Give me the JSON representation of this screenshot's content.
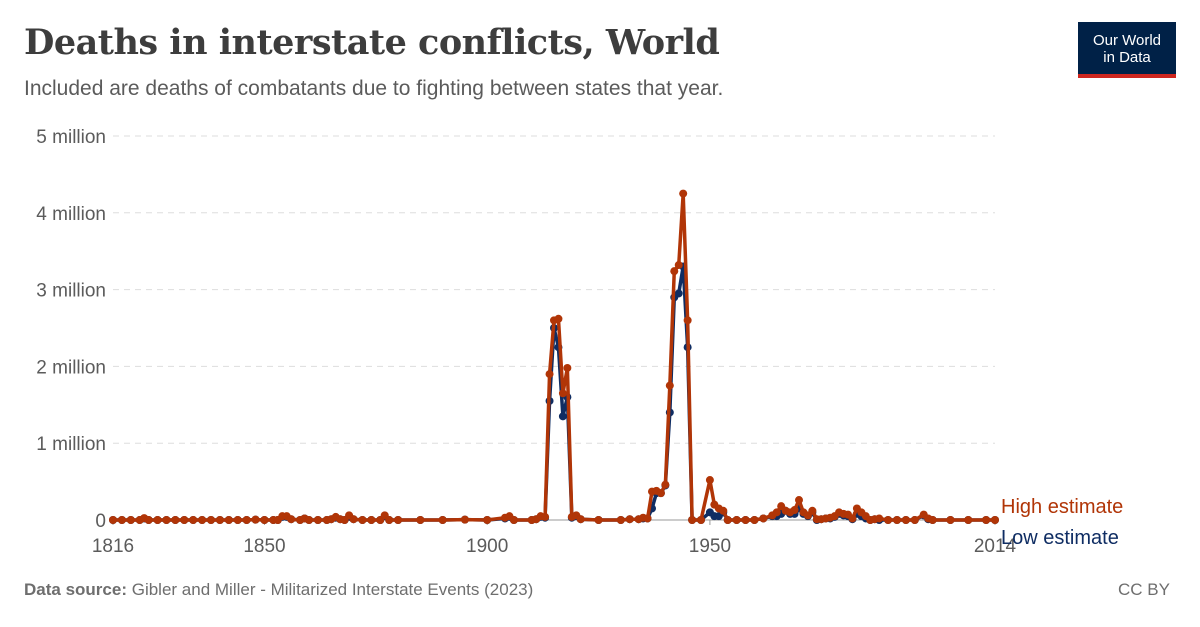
{
  "header": {
    "title": "Deaths in interstate conflicts, World",
    "subtitle": "Included are deaths of combatants due to fighting between states that year."
  },
  "logo": {
    "line1": "Our World",
    "line2": "in Data"
  },
  "footer": {
    "source_label": "Data source:",
    "source_text": "Gibler and Miller - Militarized Interstate Events (2023)",
    "license": "CC BY"
  },
  "chart_data": {
    "type": "line",
    "title": "Deaths in interstate conflicts, World",
    "xlabel": "",
    "ylabel": "",
    "xlim": [
      1816,
      2014
    ],
    "ylim": [
      0,
      5000000
    ],
    "grid": "horizontal dashed",
    "x_ticks": [
      1816,
      1850,
      1900,
      1950,
      2014
    ],
    "x_tick_labels": [
      "1816",
      "1850",
      "1900",
      "1950",
      "2014"
    ],
    "y_ticks": [
      0,
      1000000,
      2000000,
      3000000,
      4000000,
      5000000
    ],
    "y_tick_labels": [
      "0",
      "1 million",
      "2 million",
      "3 million",
      "4 million",
      "5 million"
    ],
    "legend_placement": "right, at line end",
    "series": [
      {
        "name": "Low estimate",
        "color": "#0f2d63",
        "points": [
          [
            1816,
            0
          ],
          [
            1818,
            0
          ],
          [
            1820,
            0
          ],
          [
            1822,
            0
          ],
          [
            1823,
            20000
          ],
          [
            1824,
            0
          ],
          [
            1826,
            0
          ],
          [
            1828,
            0
          ],
          [
            1830,
            0
          ],
          [
            1832,
            0
          ],
          [
            1834,
            0
          ],
          [
            1836,
            0
          ],
          [
            1838,
            0
          ],
          [
            1840,
            0
          ],
          [
            1842,
            0
          ],
          [
            1844,
            0
          ],
          [
            1846,
            0
          ],
          [
            1848,
            5000
          ],
          [
            1850,
            0
          ],
          [
            1852,
            0
          ],
          [
            1853,
            0
          ],
          [
            1854,
            40000
          ],
          [
            1855,
            40000
          ],
          [
            1856,
            10000
          ],
          [
            1858,
            0
          ],
          [
            1859,
            20000
          ],
          [
            1860,
            0
          ],
          [
            1862,
            0
          ],
          [
            1864,
            0
          ],
          [
            1865,
            10000
          ],
          [
            1866,
            30000
          ],
          [
            1867,
            10000
          ],
          [
            1868,
            0
          ],
          [
            1869,
            40000
          ],
          [
            1870,
            10000
          ],
          [
            1872,
            0
          ],
          [
            1874,
            0
          ],
          [
            1876,
            0
          ],
          [
            1877,
            50000
          ],
          [
            1878,
            0
          ],
          [
            1880,
            0
          ],
          [
            1885,
            0
          ],
          [
            1890,
            0
          ],
          [
            1895,
            5000
          ],
          [
            1900,
            0
          ],
          [
            1904,
            20000
          ],
          [
            1905,
            40000
          ],
          [
            1906,
            0
          ],
          [
            1910,
            0
          ],
          [
            1911,
            10000
          ],
          [
            1912,
            40000
          ],
          [
            1913,
            30000
          ],
          [
            1914,
            1550000
          ],
          [
            1915,
            2500000
          ],
          [
            1916,
            2250000
          ],
          [
            1917,
            1350000
          ],
          [
            1918,
            1600000
          ],
          [
            1919,
            30000
          ],
          [
            1920,
            50000
          ],
          [
            1921,
            10000
          ],
          [
            1925,
            0
          ],
          [
            1930,
            0
          ],
          [
            1932,
            10000
          ],
          [
            1934,
            10000
          ],
          [
            1935,
            20000
          ],
          [
            1936,
            20000
          ],
          [
            1937,
            150000
          ],
          [
            1938,
            350000
          ],
          [
            1939,
            350000
          ],
          [
            1940,
            450000
          ],
          [
            1941,
            1400000
          ],
          [
            1942,
            2900000
          ],
          [
            1943,
            2950000
          ],
          [
            1944,
            3300000
          ],
          [
            1945,
            2250000
          ],
          [
            1946,
            0
          ],
          [
            1948,
            0
          ],
          [
            1950,
            100000
          ],
          [
            1951,
            50000
          ],
          [
            1952,
            50000
          ],
          [
            1953,
            100000
          ],
          [
            1954,
            0
          ],
          [
            1956,
            0
          ],
          [
            1958,
            0
          ],
          [
            1960,
            0
          ],
          [
            1962,
            20000
          ],
          [
            1964,
            50000
          ],
          [
            1965,
            50000
          ],
          [
            1966,
            80000
          ],
          [
            1967,
            120000
          ],
          [
            1968,
            80000
          ],
          [
            1969,
            80000
          ],
          [
            1970,
            150000
          ],
          [
            1971,
            80000
          ],
          [
            1972,
            50000
          ],
          [
            1973,
            100000
          ],
          [
            1974,
            0
          ],
          [
            1975,
            10000
          ],
          [
            1976,
            20000
          ],
          [
            1977,
            20000
          ],
          [
            1978,
            40000
          ],
          [
            1979,
            80000
          ],
          [
            1980,
            60000
          ],
          [
            1981,
            50000
          ],
          [
            1982,
            10000
          ],
          [
            1983,
            80000
          ],
          [
            1984,
            50000
          ],
          [
            1985,
            20000
          ],
          [
            1986,
            0
          ],
          [
            1987,
            10000
          ],
          [
            1988,
            0
          ],
          [
            1990,
            0
          ],
          [
            1992,
            0
          ],
          [
            1994,
            0
          ],
          [
            1996,
            0
          ],
          [
            1998,
            60000
          ],
          [
            1999,
            10000
          ],
          [
            2000,
            0
          ],
          [
            2004,
            0
          ],
          [
            2008,
            0
          ],
          [
            2012,
            0
          ],
          [
            2014,
            0
          ]
        ]
      },
      {
        "name": "High estimate",
        "color": "#b13507",
        "points": [
          [
            1816,
            0
          ],
          [
            1818,
            0
          ],
          [
            1820,
            0
          ],
          [
            1822,
            0
          ],
          [
            1823,
            25000
          ],
          [
            1824,
            0
          ],
          [
            1826,
            0
          ],
          [
            1828,
            0
          ],
          [
            1830,
            0
          ],
          [
            1832,
            0
          ],
          [
            1834,
            0
          ],
          [
            1836,
            0
          ],
          [
            1838,
            0
          ],
          [
            1840,
            0
          ],
          [
            1842,
            0
          ],
          [
            1844,
            0
          ],
          [
            1846,
            0
          ],
          [
            1848,
            5000
          ],
          [
            1850,
            0
          ],
          [
            1852,
            0
          ],
          [
            1853,
            0
          ],
          [
            1854,
            50000
          ],
          [
            1855,
            50000
          ],
          [
            1856,
            10000
          ],
          [
            1858,
            0
          ],
          [
            1859,
            20000
          ],
          [
            1860,
            0
          ],
          [
            1862,
            0
          ],
          [
            1864,
            0
          ],
          [
            1865,
            10000
          ],
          [
            1866,
            40000
          ],
          [
            1867,
            10000
          ],
          [
            1868,
            0
          ],
          [
            1869,
            60000
          ],
          [
            1870,
            10000
          ],
          [
            1872,
            0
          ],
          [
            1874,
            0
          ],
          [
            1876,
            0
          ],
          [
            1877,
            60000
          ],
          [
            1878,
            0
          ],
          [
            1880,
            0
          ],
          [
            1885,
            0
          ],
          [
            1890,
            0
          ],
          [
            1895,
            5000
          ],
          [
            1900,
            0
          ],
          [
            1904,
            30000
          ],
          [
            1905,
            50000
          ],
          [
            1906,
            0
          ],
          [
            1910,
            0
          ],
          [
            1911,
            10000
          ],
          [
            1912,
            50000
          ],
          [
            1913,
            40000
          ],
          [
            1914,
            1900000
          ],
          [
            1915,
            2600000
          ],
          [
            1916,
            2620000
          ],
          [
            1917,
            1650000
          ],
          [
            1918,
            1980000
          ],
          [
            1919,
            40000
          ],
          [
            1920,
            60000
          ],
          [
            1921,
            10000
          ],
          [
            1925,
            0
          ],
          [
            1930,
            0
          ],
          [
            1932,
            10000
          ],
          [
            1934,
            10000
          ],
          [
            1935,
            30000
          ],
          [
            1936,
            20000
          ],
          [
            1937,
            370000
          ],
          [
            1938,
            380000
          ],
          [
            1939,
            350000
          ],
          [
            1940,
            460000
          ],
          [
            1941,
            1750000
          ],
          [
            1942,
            3240000
          ],
          [
            1943,
            3320000
          ],
          [
            1944,
            4250000
          ],
          [
            1945,
            2600000
          ],
          [
            1946,
            0
          ],
          [
            1948,
            0
          ],
          [
            1950,
            520000
          ],
          [
            1951,
            200000
          ],
          [
            1952,
            150000
          ],
          [
            1953,
            120000
          ],
          [
            1954,
            0
          ],
          [
            1956,
            0
          ],
          [
            1958,
            0
          ],
          [
            1960,
            0
          ],
          [
            1962,
            20000
          ],
          [
            1964,
            60000
          ],
          [
            1965,
            100000
          ],
          [
            1966,
            180000
          ],
          [
            1967,
            120000
          ],
          [
            1968,
            100000
          ],
          [
            1969,
            130000
          ],
          [
            1970,
            260000
          ],
          [
            1971,
            100000
          ],
          [
            1972,
            60000
          ],
          [
            1973,
            120000
          ],
          [
            1974,
            10000
          ],
          [
            1975,
            10000
          ],
          [
            1976,
            20000
          ],
          [
            1977,
            30000
          ],
          [
            1978,
            50000
          ],
          [
            1979,
            100000
          ],
          [
            1980,
            80000
          ],
          [
            1981,
            70000
          ],
          [
            1982,
            20000
          ],
          [
            1983,
            150000
          ],
          [
            1984,
            100000
          ],
          [
            1985,
            50000
          ],
          [
            1986,
            0
          ],
          [
            1987,
            10000
          ],
          [
            1988,
            20000
          ],
          [
            1990,
            0
          ],
          [
            1992,
            0
          ],
          [
            1994,
            0
          ],
          [
            1996,
            0
          ],
          [
            1998,
            70000
          ],
          [
            1999,
            20000
          ],
          [
            2000,
            0
          ],
          [
            2004,
            0
          ],
          [
            2008,
            0
          ],
          [
            2012,
            0
          ],
          [
            2014,
            0
          ]
        ]
      }
    ]
  }
}
